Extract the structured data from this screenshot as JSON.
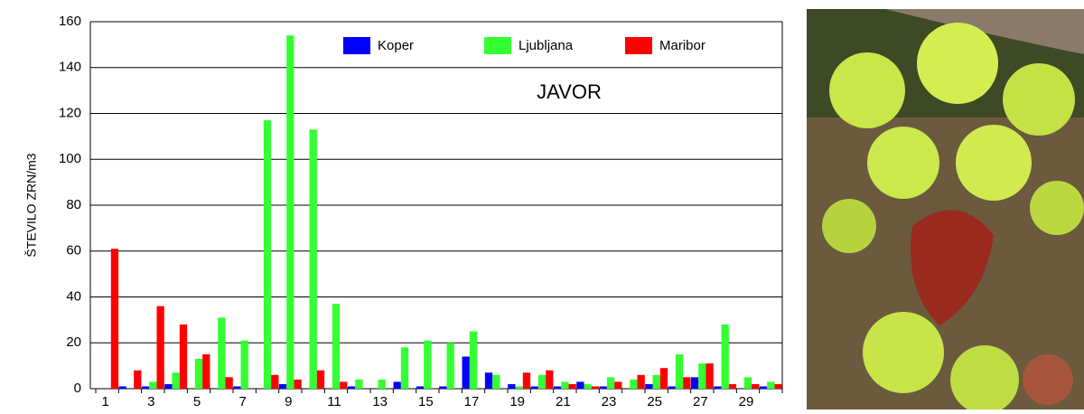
{
  "chart_data": {
    "type": "bar",
    "annotation": "JAVOR",
    "y_label": "ŠTEVILO ZRN/m3",
    "categories": [
      1,
      null,
      3,
      null,
      5,
      null,
      7,
      null,
      9,
      null,
      11,
      null,
      13,
      null,
      15,
      null,
      17,
      null,
      19,
      null,
      21,
      null,
      23,
      null,
      25,
      null,
      27,
      null,
      29,
      null
    ],
    "series": [
      {
        "name": "Koper",
        "color": "#0000ff",
        "values": [
          0,
          1,
          1,
          2,
          0,
          0,
          1,
          0,
          2,
          0,
          0,
          1,
          0,
          3,
          1,
          1,
          14,
          7,
          2,
          1,
          1,
          3,
          1,
          0,
          2,
          1,
          5,
          1,
          0,
          1
        ]
      },
      {
        "name": "Ljubljana",
        "color": "#33ff33",
        "values": [
          0,
          0,
          3,
          7,
          13,
          31,
          21,
          117,
          154,
          113,
          37,
          4,
          4,
          18,
          21,
          20,
          25,
          6,
          1,
          6,
          3,
          2,
          5,
          4,
          6,
          15,
          11,
          28,
          5,
          3
        ]
      },
      {
        "name": "Maribor",
        "color": "#ff0000",
        "values": [
          61,
          8,
          36,
          28,
          15,
          5,
          0,
          6,
          4,
          8,
          3,
          0,
          0,
          0,
          0,
          0,
          0,
          0,
          7,
          8,
          2,
          1,
          3,
          6,
          9,
          5,
          11,
          2,
          2,
          2
        ]
      }
    ],
    "ylim": [
      0,
      160
    ],
    "yticks": [
      0,
      20,
      40,
      60,
      80,
      100,
      120,
      140,
      160
    ],
    "grid": true,
    "legend": "top-center"
  }
}
